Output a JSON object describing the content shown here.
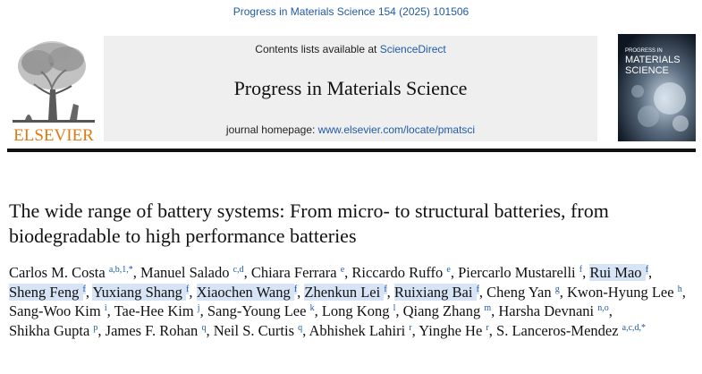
{
  "journal_ref": "Progress in Materials Science 154 (2025) 101506",
  "header": {
    "contents_prefix": "Contents lists available at ",
    "contents_link": "ScienceDirect",
    "journal_title": "Progress in Materials Science",
    "homepage_prefix": "journal homepage: ",
    "homepage_url": "www.elsevier.com/locate/pmatsci"
  },
  "publisher_logo_text": "ELSEVIER",
  "cover": {
    "line1": "PROGRESS IN",
    "line2": "MATERIALS",
    "line3": "SCIENCE"
  },
  "article_title": "The wide range of battery systems: From micro- to structural batteries, from biodegradable to high performance batteries",
  "authors": [
    {
      "name": "Carlos M. Costa",
      "affil": "a,b,1,*",
      "sep": ", ",
      "highlight": false
    },
    {
      "name": "Manuel Salado",
      "affil": "c,d",
      "sep": ", ",
      "highlight": false
    },
    {
      "name": "Chiara Ferrara",
      "affil": "e",
      "sep": ", ",
      "highlight": false
    },
    {
      "name": "Riccardo Ruffo",
      "affil": "e",
      "sep": ", ",
      "highlight": false
    },
    {
      "name": "Piercarlo Mustarelli",
      "affil": "f",
      "sep": ", ",
      "highlight": false
    },
    {
      "name": "Rui Mao",
      "affil": "f",
      "sep": ", ",
      "highlight": true
    },
    {
      "name": "Sheng Feng",
      "affil": "f",
      "sep": ", ",
      "highlight": true
    },
    {
      "name": "Yuxiang Shang",
      "affil": "f",
      "sep": ", ",
      "highlight": true
    },
    {
      "name": "Xiaochen Wang",
      "affil": "f",
      "sep": ", ",
      "highlight": true
    },
    {
      "name": "Zhenkun Lei",
      "affil": "f",
      "sep": ", ",
      "highlight": true
    },
    {
      "name": "Ruixiang Bai",
      "affil": "f",
      "sep": ", ",
      "highlight": true
    },
    {
      "name": "Cheng Yan",
      "affil": "g",
      "sep": ", ",
      "highlight": false
    },
    {
      "name": "Kwon-Hyung Lee",
      "affil": "h",
      "sep": ", ",
      "highlight": false
    },
    {
      "name": "Sang-Woo Kim",
      "affil": "i",
      "sep": ", ",
      "highlight": false
    },
    {
      "name": "Tae-Hee Kim",
      "affil": "j",
      "sep": ", ",
      "highlight": false
    },
    {
      "name": "Sang-Young Lee",
      "affil": "k",
      "sep": ", ",
      "highlight": false
    },
    {
      "name": "Long Kong",
      "affil": "l",
      "sep": ", ",
      "highlight": false
    },
    {
      "name": "Qiang Zhang",
      "affil": "m",
      "sep": ", ",
      "highlight": false
    },
    {
      "name": "Harsha Devnani",
      "affil": "n,o",
      "sep": ", ",
      "highlight": false
    },
    {
      "name": "Shikha Gupta",
      "affil": "p",
      "sep": ", ",
      "highlight": false
    },
    {
      "name": "James F. Rohan",
      "affil": "q",
      "sep": ", ",
      "highlight": false
    },
    {
      "name": "Neil S. Curtis",
      "affil": "q",
      "sep": ", ",
      "highlight": false
    },
    {
      "name": "Abhishek Lahiri",
      "affil": "r",
      "sep": ", ",
      "highlight": false
    },
    {
      "name": "Yinghe He",
      "affil": "r",
      "sep": ", ",
      "highlight": false
    },
    {
      "name": "S. Lanceros-Mendez",
      "affil": "a,c,d,*",
      "sep": "",
      "highlight": false
    }
  ]
}
